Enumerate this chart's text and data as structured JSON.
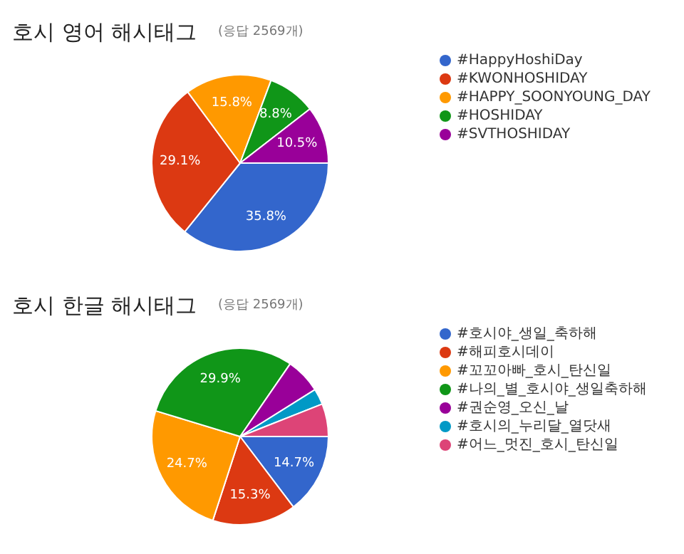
{
  "chart_data": [
    {
      "type": "pie",
      "title": "호시 영어 해시태그",
      "subtitle": "(응답 2569개)",
      "legend": "right",
      "value_labels": [
        "35.8%",
        "29.1%",
        "15.8%",
        "8.8%",
        "10.5%"
      ],
      "categories": [
        "#HappyHoshiDay",
        "#KWONHOSHIDAY",
        "#HAPPY_SOONYOUNG_DAY",
        "#HOSHIDAY",
        "#SVTHOSHIDAY"
      ],
      "values": [
        35.8,
        29.1,
        15.8,
        8.8,
        10.5
      ],
      "colors": [
        "#3366cc",
        "#dc3912",
        "#ff9900",
        "#109618",
        "#990099"
      ]
    },
    {
      "type": "pie",
      "title": "호시 한글 해시태그",
      "subtitle": "(응답 2569개)",
      "legend": "right",
      "categories": [
        "#호시야_생일_축하해",
        "#해피호시데이",
        "#꼬꼬아빠_호시_탄신일",
        "#나의_별_호시야_생일축하해",
        "#권순영_오신_날",
        "#호시의_누리달_열닷새",
        "#어느_멋진_호시_탄신일"
      ],
      "values": [
        14.7,
        15.3,
        24.7,
        29.9,
        6.5,
        2.9,
        6.0
      ],
      "value_labels": [
        "14.7%",
        "15.3%",
        "24.7%",
        "29.9%",
        null,
        null,
        null
      ],
      "colors": [
        "#3366cc",
        "#dc3912",
        "#ff9900",
        "#109618",
        "#990099",
        "#0099c6",
        "#dd4477"
      ]
    }
  ]
}
